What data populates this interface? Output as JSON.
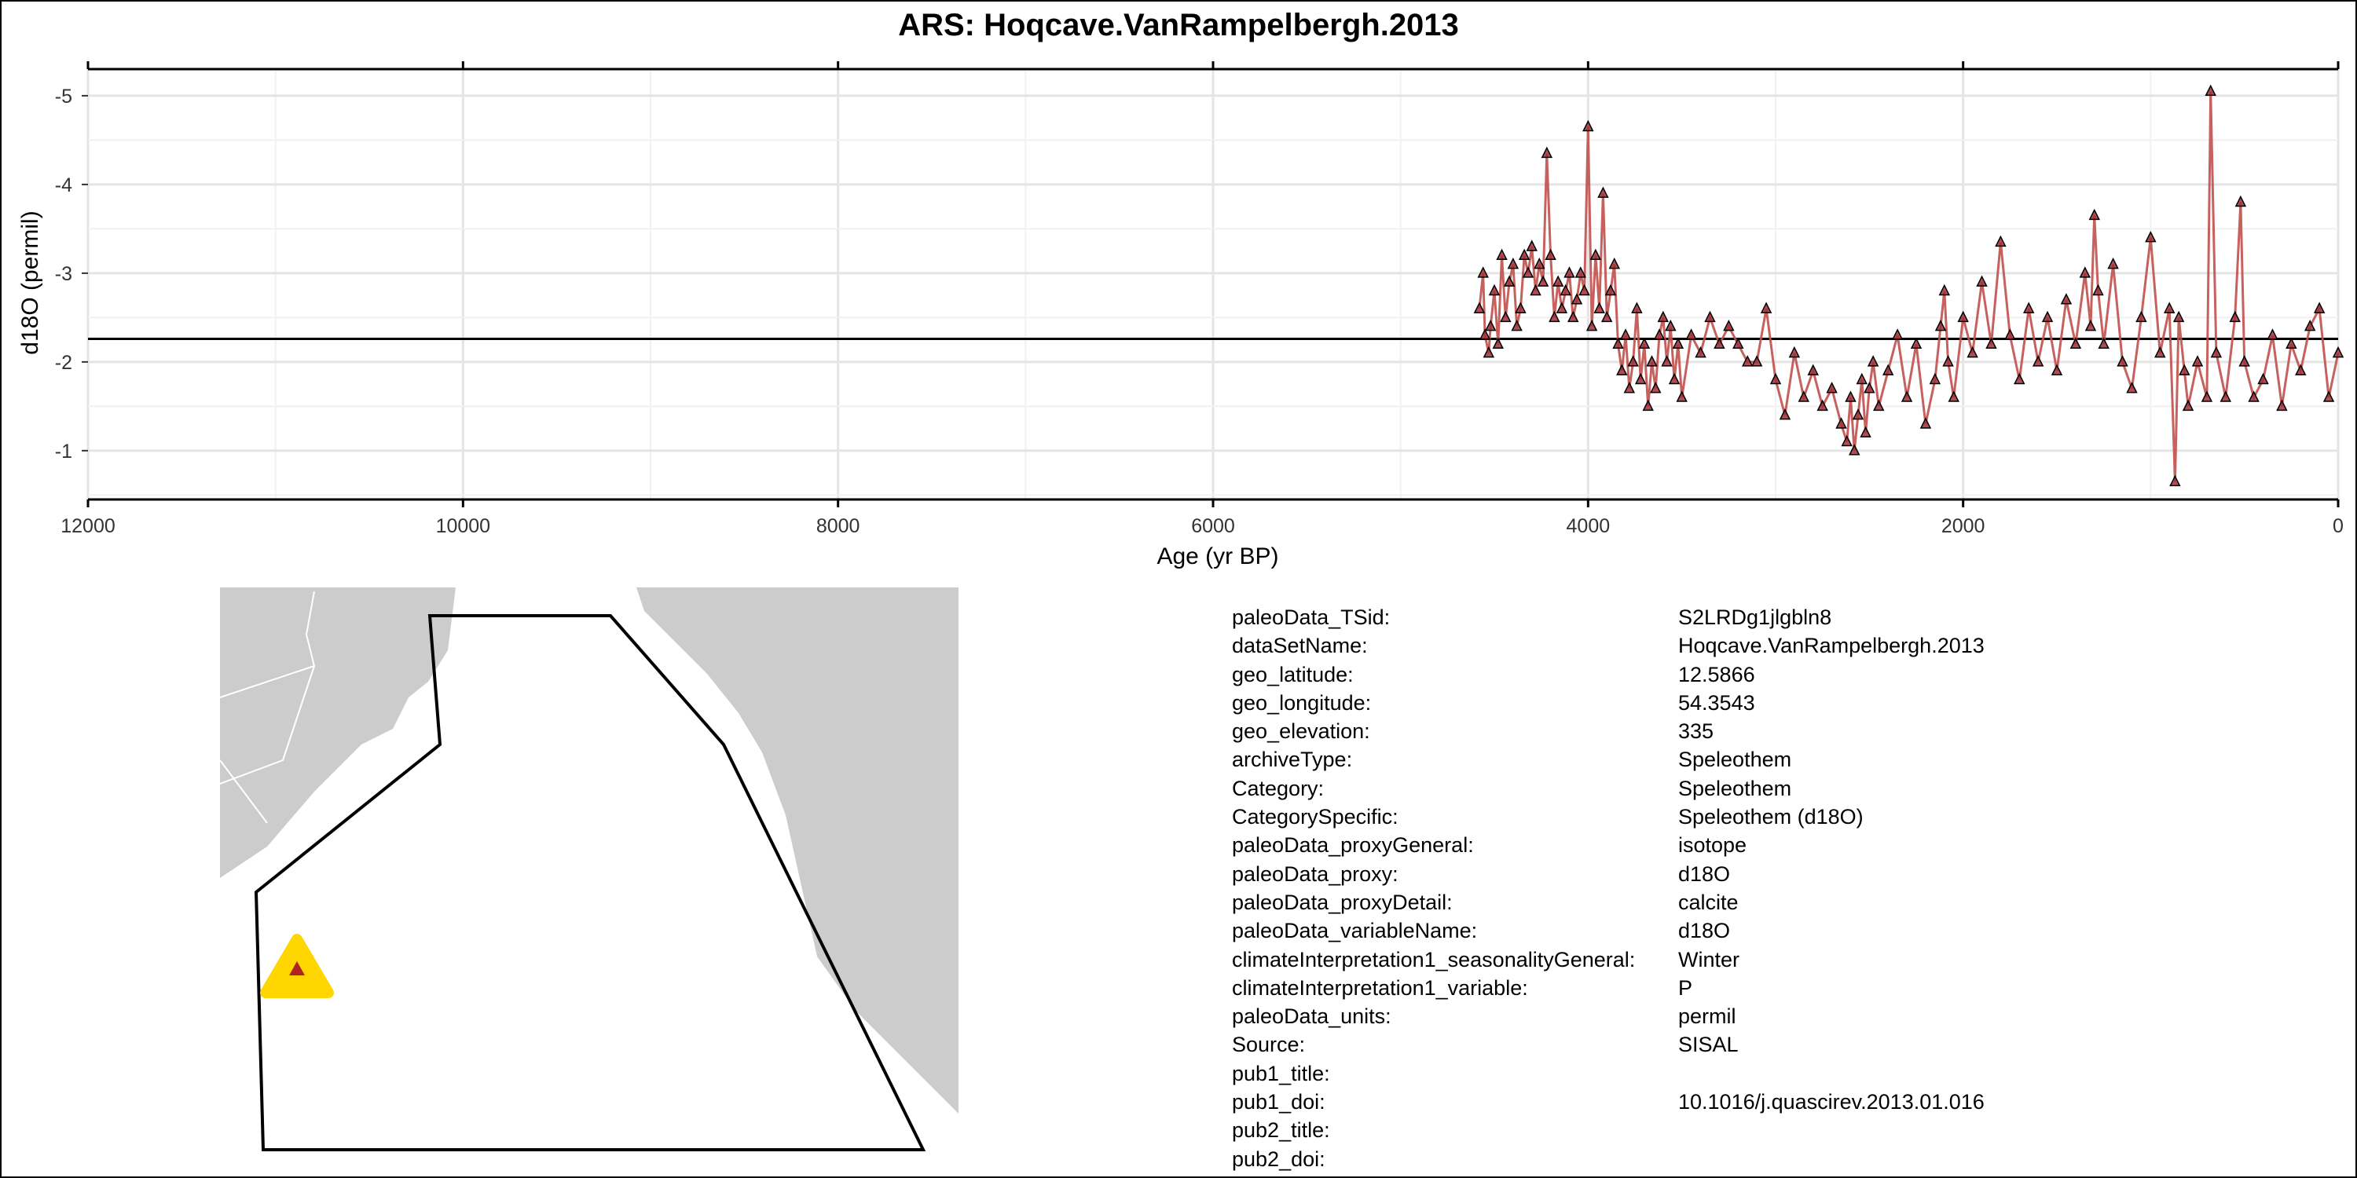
{
  "title": "ARS: Hoqcave.VanRampelbergh.2013",
  "chart_data": {
    "type": "line",
    "xlabel": "Age (yr BP)",
    "ylabel": "d18O (permil)",
    "x_reversed": true,
    "y_reversed": true,
    "xlim": [
      12000,
      0
    ],
    "ylim": [
      -5.3,
      -0.45
    ],
    "x_ticks": [
      12000,
      10000,
      8000,
      6000,
      4000,
      2000,
      0
    ],
    "y_ticks": [
      -5,
      -4,
      -3,
      -2,
      -1
    ],
    "grid": true,
    "mean_line": -2.26,
    "marker": "triangle",
    "line_color": "#c0504d",
    "marker_color": "#a0303a",
    "series": [
      {
        "x": [
          4580,
          4560,
          4550,
          4530,
          4520,
          4500,
          4480,
          4460,
          4440,
          4420,
          4400,
          4380,
          4360,
          4340,
          4320,
          4300,
          4280,
          4260,
          4240,
          4220,
          4200,
          4180,
          4160,
          4140,
          4120,
          4100,
          4080,
          4060,
          4040,
          4020,
          4000,
          3980,
          3960,
          3940,
          3920,
          3900,
          3880,
          3860,
          3840,
          3820,
          3800,
          3780,
          3760,
          3740,
          3720,
          3700,
          3680,
          3660,
          3640,
          3620,
          3600,
          3580,
          3560,
          3540,
          3520,
          3500,
          3450,
          3400,
          3350,
          3300,
          3250,
          3200,
          3150,
          3100,
          3050,
          3000,
          2950,
          2900,
          2850,
          2800,
          2750,
          2700,
          2650,
          2620,
          2600,
          2580,
          2560,
          2540,
          2520,
          2500,
          2480,
          2450,
          2400,
          2350,
          2300,
          2250,
          2200,
          2150,
          2120,
          2100,
          2080,
          2050,
          2000,
          1950,
          1900,
          1850,
          1800,
          1750,
          1700,
          1650,
          1600,
          1550,
          1500,
          1450,
          1400,
          1350,
          1320,
          1300,
          1280,
          1250,
          1200,
          1150,
          1100,
          1050,
          1000,
          950,
          900,
          870,
          850,
          820,
          800,
          750,
          700,
          680,
          650,
          600,
          550,
          520,
          500,
          450,
          400,
          350,
          300,
          250,
          200,
          150,
          100,
          50,
          0
        ],
        "y": [
          -2.6,
          -3.0,
          -2.3,
          -2.1,
          -2.4,
          -2.8,
          -2.2,
          -3.2,
          -2.5,
          -2.9,
          -3.1,
          -2.4,
          -2.6,
          -3.2,
          -3.0,
          -3.3,
          -2.8,
          -3.1,
          -2.9,
          -4.35,
          -3.2,
          -2.5,
          -2.9,
          -2.6,
          -2.8,
          -3.0,
          -2.5,
          -2.7,
          -3.0,
          -2.8,
          -4.65,
          -2.4,
          -3.2,
          -2.6,
          -3.9,
          -2.5,
          -2.8,
          -3.1,
          -2.2,
          -1.9,
          -2.3,
          -1.7,
          -2.0,
          -2.6,
          -1.8,
          -2.2,
          -1.5,
          -2.0,
          -1.7,
          -2.3,
          -2.5,
          -2.0,
          -2.4,
          -1.8,
          -2.2,
          -1.6,
          -2.3,
          -2.1,
          -2.5,
          -2.2,
          -2.4,
          -2.2,
          -2.0,
          -2.0,
          -2.6,
          -1.8,
          -1.4,
          -2.1,
          -1.6,
          -1.9,
          -1.5,
          -1.7,
          -1.3,
          -1.1,
          -1.6,
          -1.0,
          -1.4,
          -1.8,
          -1.2,
          -1.7,
          -2.0,
          -1.5,
          -1.9,
          -2.3,
          -1.6,
          -2.2,
          -1.3,
          -1.8,
          -2.4,
          -2.8,
          -2.0,
          -1.6,
          -2.5,
          -2.1,
          -2.9,
          -2.2,
          -3.35,
          -2.3,
          -1.8,
          -2.6,
          -2.0,
          -2.5,
          -1.9,
          -2.7,
          -2.2,
          -3.0,
          -2.4,
          -3.65,
          -2.8,
          -2.2,
          -3.1,
          -2.0,
          -1.7,
          -2.5,
          -3.4,
          -2.1,
          -2.6,
          -0.65,
          -2.5,
          -1.9,
          -1.5,
          -2.0,
          -1.6,
          -5.05,
          -2.1,
          -1.6,
          -2.5,
          -3.8,
          -2.0,
          -1.6,
          -1.8,
          -2.3,
          -1.5,
          -2.2,
          -1.9,
          -2.4,
          -2.6,
          -1.6,
          -2.1
        ]
      }
    ]
  },
  "map": {
    "land_color": "#cccccc",
    "marker_outer_color": "#ffd600",
    "marker_inner_color": "#b22222"
  },
  "metadata": [
    {
      "key": "paleoData_TSid:",
      "value": "S2LRDg1jlgbln8"
    },
    {
      "key": "dataSetName:",
      "value": "Hoqcave.VanRampelbergh.2013"
    },
    {
      "key": "geo_latitude:",
      "value": "12.5866"
    },
    {
      "key": "geo_longitude:",
      "value": "54.3543"
    },
    {
      "key": "geo_elevation:",
      "value": "335"
    },
    {
      "key": "archiveType:",
      "value": "Speleothem"
    },
    {
      "key": "Category:",
      "value": "Speleothem"
    },
    {
      "key": "CategorySpecific:",
      "value": "Speleothem (d18O)"
    },
    {
      "key": "paleoData_proxyGeneral:",
      "value": "isotope"
    },
    {
      "key": "paleoData_proxy:",
      "value": "d18O"
    },
    {
      "key": "paleoData_proxyDetail:",
      "value": "calcite"
    },
    {
      "key": "paleoData_variableName:",
      "value": "d18O"
    },
    {
      "key": "climateInterpretation1_seasonalityGeneral:",
      "value": "Winter"
    },
    {
      "key": "climateInterpretation1_variable:",
      "value": "P"
    },
    {
      "key": "paleoData_units:",
      "value": "permil"
    },
    {
      "key": "Source:",
      "value": "SISAL"
    },
    {
      "key": "pub1_title:",
      "value": ""
    },
    {
      "key": "pub1_doi:",
      "value": "10.1016/j.quascirev.2013.01.016"
    },
    {
      "key": "pub2_title:",
      "value": ""
    },
    {
      "key": "pub2_doi:",
      "value": ""
    }
  ]
}
